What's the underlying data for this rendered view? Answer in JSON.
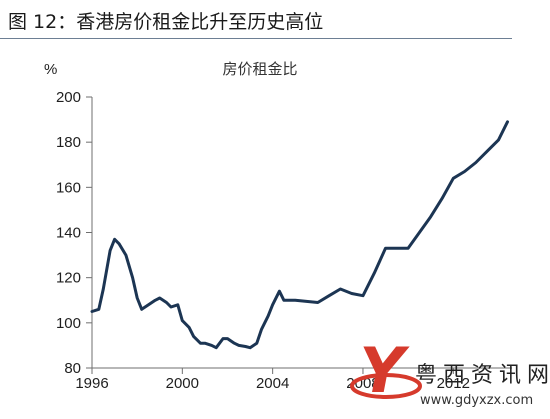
{
  "figure_title": "图 12：香港房价租金比升至历史高位",
  "chart_data": {
    "type": "line",
    "title": "房价租金比",
    "y_unit": "%",
    "xlabel": "",
    "ylabel": "",
    "xlim": [
      1996,
      2014.6
    ],
    "ylim": [
      80,
      200
    ],
    "x_ticks": [
      "1996",
      "2000",
      "2004",
      "2008",
      "2012"
    ],
    "y_ticks": [
      "80",
      "100",
      "120",
      "140",
      "160",
      "180",
      "200"
    ],
    "grid": false,
    "legend": "none",
    "line_color": "#1c3553",
    "series": [
      {
        "x": [
          1996.0,
          1996.3,
          1996.5,
          1996.8,
          1997.0,
          1997.2,
          1997.5,
          1997.8,
          1998.0,
          1998.2,
          1998.5,
          1998.8,
          1999.0,
          1999.3,
          1999.5,
          1999.8,
          2000.0,
          2000.3,
          2000.5,
          2000.8,
          2001.0,
          2001.3,
          2001.5,
          2001.8,
          2002.0,
          2002.3,
          2002.5,
          2002.8,
          2003.0,
          2003.3,
          2003.5,
          2003.8,
          2004.0,
          2004.3,
          2004.5,
          2005.0,
          2005.5,
          2006.0,
          2006.5,
          2007.0,
          2007.5,
          2008.0,
          2008.5,
          2009.0,
          2009.5,
          2010.0,
          2010.5,
          2011.0,
          2011.5,
          2012.0,
          2012.5,
          2013.0,
          2013.5,
          2014.0,
          2014.4
        ],
        "y": [
          105,
          106,
          115,
          132,
          137,
          135,
          130,
          120,
          111,
          106,
          108,
          110,
          111,
          109,
          107,
          108,
          101,
          98,
          94,
          91,
          91,
          90,
          89,
          93,
          93,
          91,
          90,
          89.5,
          89,
          91,
          97,
          103,
          108,
          114,
          110,
          110,
          109.5,
          109,
          112,
          115,
          113,
          112,
          122,
          133,
          133,
          133,
          140,
          147,
          155,
          164,
          167,
          171,
          176,
          181,
          189
        ]
      }
    ]
  },
  "watermark": {
    "logo_letter": "Y",
    "text": "粤西资讯网",
    "url": "www.gdyxzx.com"
  }
}
